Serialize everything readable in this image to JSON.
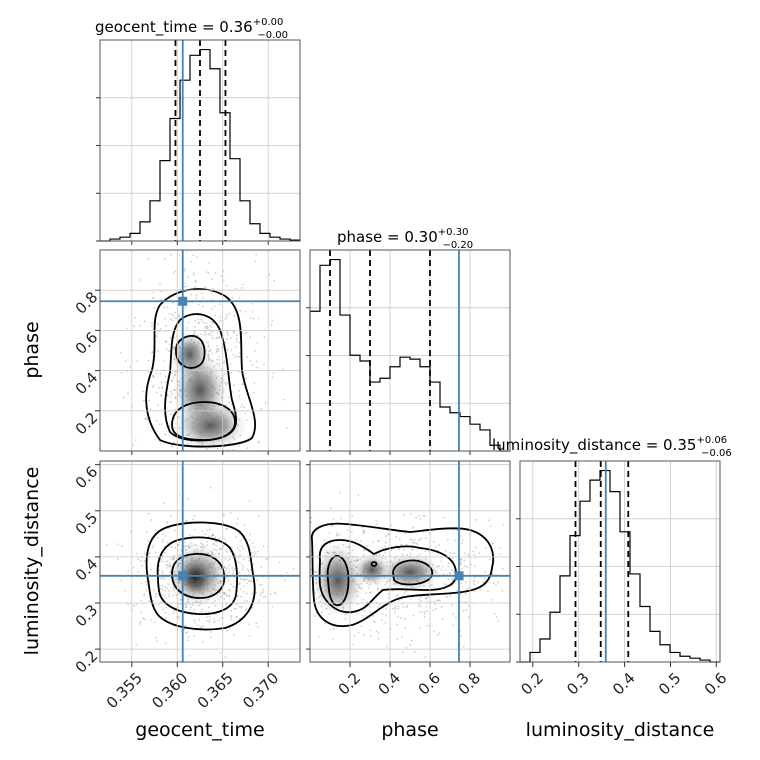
{
  "titles": {
    "geocent_time": {
      "main": "geocent_time = 0.36",
      "sup": "+0.00",
      "sub": "−0.00"
    },
    "phase": {
      "main": "phase = 0.30",
      "sup": "+0.30",
      "sub": "−0.20"
    },
    "luminosity_distance": {
      "main": "luminosity_distance = 0.35",
      "sup": "+0.06",
      "sub": "−0.06"
    }
  },
  "axis_labels": {
    "geocent_time": "geocent_time",
    "phase": "phase",
    "luminosity_distance": "luminosity_distance"
  },
  "colors": {
    "truth": "#4682b4",
    "contour": "#000000",
    "grid": "#c8c8c8"
  },
  "chart_data": {
    "type": "corner",
    "parameters": [
      {
        "name": "geocent_time",
        "range": [
          0.3515,
          0.3735
        ],
        "ticks": [
          0.355,
          0.36,
          0.365,
          0.37
        ],
        "tick_labels": [
          "0.355",
          "0.360",
          "0.365",
          "0.370"
        ],
        "quantiles": [
          0.3598,
          0.3625,
          0.3653
        ],
        "truth": 0.3606
      },
      {
        "name": "phase",
        "range": [
          0.0,
          1.0
        ],
        "ticks": [
          0.2,
          0.4,
          0.6,
          0.8
        ],
        "tick_labels": [
          "0.2",
          "0.4",
          "0.6",
          "0.8"
        ],
        "quantiles": [
          0.1,
          0.3,
          0.6
        ],
        "truth": 0.745
      },
      {
        "name": "luminosity_distance",
        "range": [
          0.172,
          0.608
        ],
        "ticks": [
          0.2,
          0.3,
          0.4,
          0.5,
          0.6
        ],
        "tick_labels": [
          "0.2",
          "0.3",
          "0.4",
          "0.5",
          "0.6"
        ],
        "quantiles": [
          0.293,
          0.348,
          0.408
        ],
        "truth": 0.359
      }
    ],
    "histograms": {
      "geocent_time": {
        "edges_start": 0.3515,
        "bin_width": 0.0011,
        "counts": [
          0.0,
          0.01,
          0.02,
          0.04,
          0.1,
          0.21,
          0.42,
          0.64,
          0.84,
          0.97,
          1.0,
          0.9,
          0.67,
          0.43,
          0.21,
          0.09,
          0.04,
          0.02,
          0.01,
          0.005
        ]
      },
      "phase": {
        "edges_start": 0.0,
        "bin_width": 0.05,
        "counts": [
          0.73,
          0.97,
          1.0,
          0.71,
          0.5,
          0.47,
          0.36,
          0.38,
          0.44,
          0.49,
          0.48,
          0.44,
          0.36,
          0.23,
          0.2,
          0.18,
          0.14,
          0.11,
          0.03,
          0.0
        ]
      },
      "luminosity_distance": {
        "edges_start": 0.172,
        "bin_width": 0.0218,
        "counts": [
          0.0,
          0.05,
          0.12,
          0.26,
          0.45,
          0.66,
          0.84,
          0.95,
          1.0,
          0.89,
          0.68,
          0.46,
          0.29,
          0.16,
          0.09,
          0.05,
          0.03,
          0.02,
          0.01,
          0.0
        ]
      }
    },
    "marginal_ylim": [
      0,
      1.05
    ]
  }
}
